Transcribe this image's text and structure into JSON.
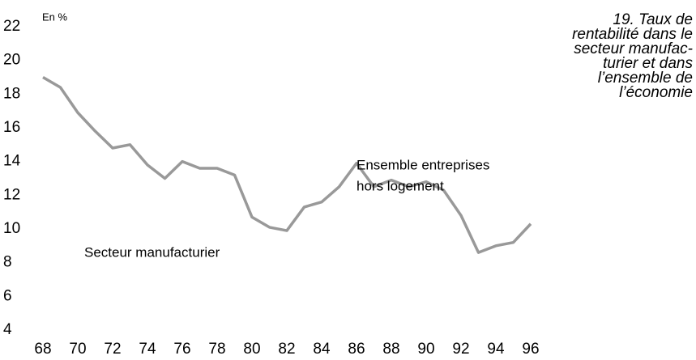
{
  "chart_data": {
    "type": "line",
    "title": [
      "19. Taux de",
      "rentabilité dans le",
      "secteur manufac-",
      "turier et dans",
      "l’ensemble de",
      "l’économie"
    ],
    "y_unit": "En %",
    "annotations": [
      [
        "Ensemble entreprises",
        "hors logement"
      ],
      [
        "Secteur manufacturier"
      ]
    ],
    "x": [
      68,
      69,
      70,
      71,
      72,
      73,
      74,
      75,
      76,
      77,
      78,
      79,
      80,
      81,
      82,
      83,
      84,
      85,
      86,
      87,
      88,
      89,
      90,
      91,
      92,
      93,
      94,
      95,
      96
    ],
    "series": [
      {
        "color": "#999999",
        "values": [
          19.0,
          18.4,
          16.9,
          15.8,
          14.8,
          15.0,
          13.8,
          13.0,
          14.0,
          13.6,
          13.6,
          13.2,
          10.7,
          10.1,
          9.9,
          11.3,
          11.6,
          12.5,
          13.9,
          12.5,
          12.9,
          12.5,
          12.8,
          12.3,
          10.8,
          8.6,
          9.0,
          9.2,
          10.3
        ]
      }
    ],
    "xlim": [
      68,
      96
    ],
    "xticks": [
      68,
      70,
      72,
      74,
      76,
      78,
      80,
      82,
      84,
      86,
      88,
      90,
      92,
      94,
      96
    ],
    "ylim": [
      4,
      22
    ],
    "yticks": [
      4,
      6,
      8,
      10,
      12,
      14,
      16,
      18,
      20,
      22
    ],
    "grid": false
  }
}
